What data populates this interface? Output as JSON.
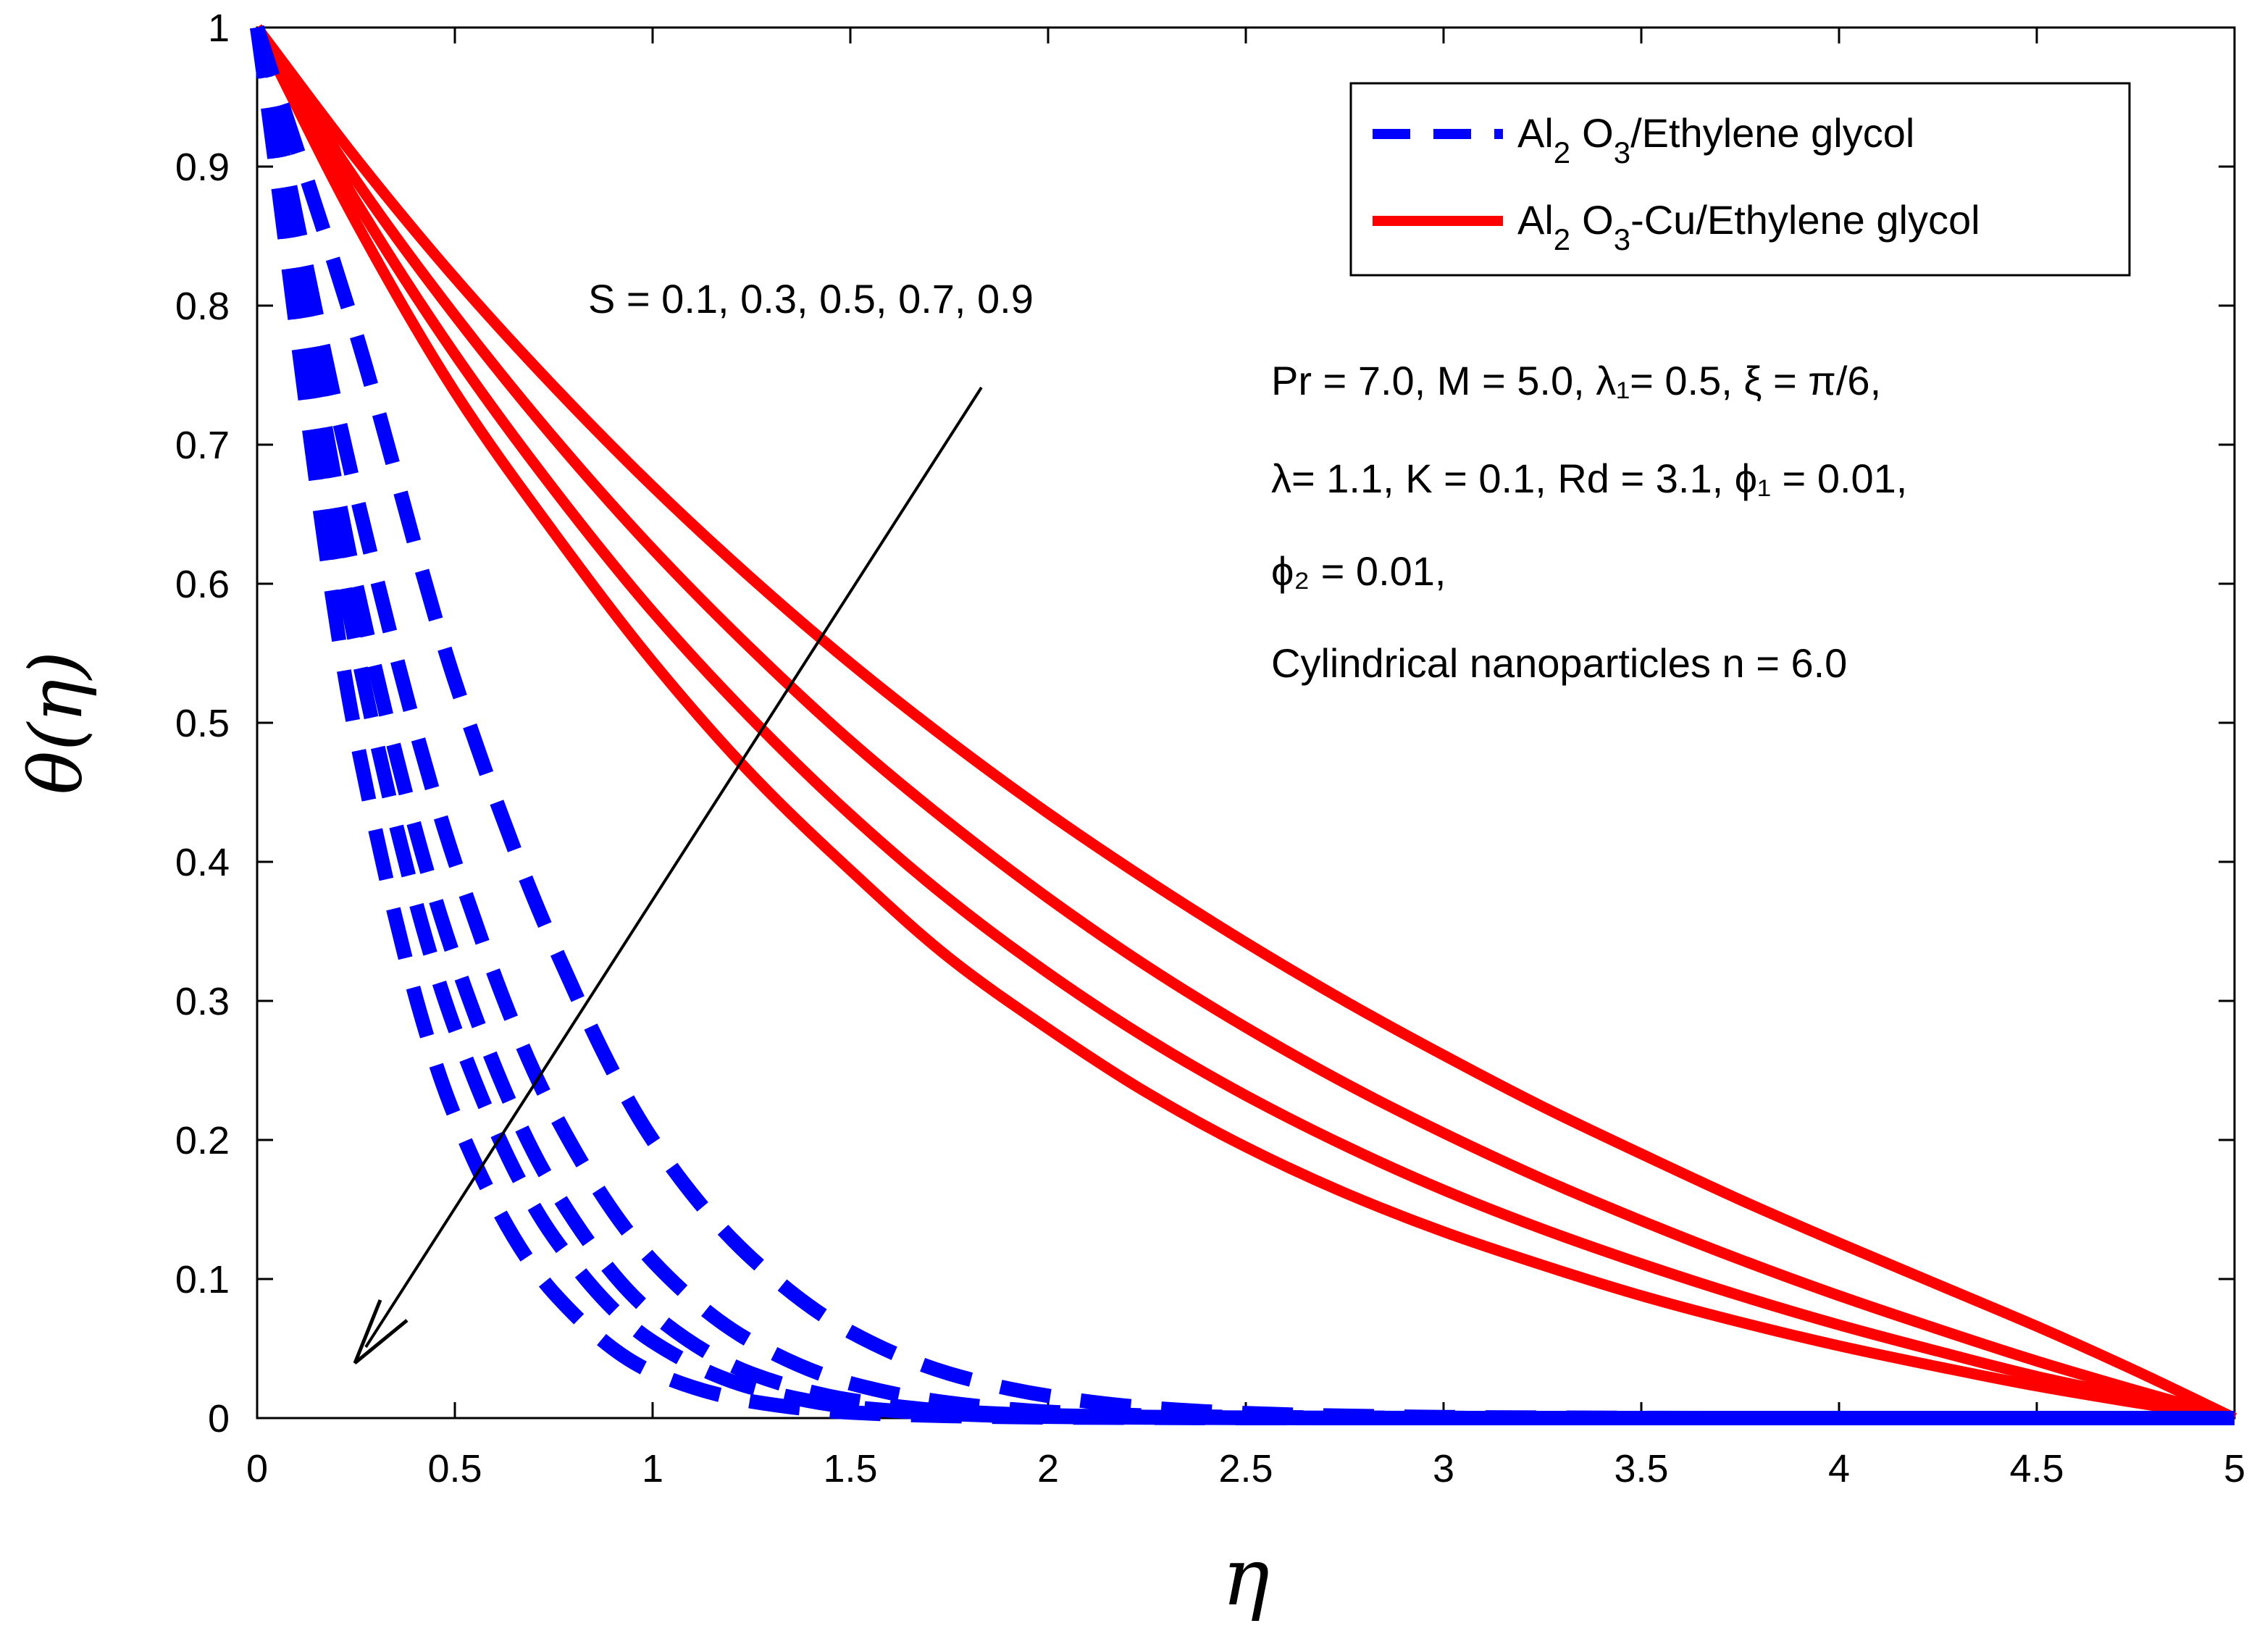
{
  "chart_data": {
    "type": "line",
    "xlabel": "η",
    "ylabel": "θ(η)",
    "xlim": [
      0,
      5
    ],
    "ylim": [
      0,
      1
    ],
    "x_ticks": [
      "0",
      "0.5",
      "1",
      "1.5",
      "2",
      "2.5",
      "3",
      "3.5",
      "4",
      "4.5",
      "5"
    ],
    "y_ticks": [
      "0",
      "0.1",
      "0.2",
      "0.3",
      "0.4",
      "0.5",
      "0.6",
      "0.7",
      "0.8",
      "0.9",
      "1"
    ],
    "x": [
      0,
      0.25,
      0.5,
      0.75,
      1,
      1.25,
      1.5,
      1.75,
      2,
      2.25,
      2.5,
      2.75,
      3,
      3.25,
      3.5,
      3.75,
      4,
      4.25,
      4.5,
      4.75,
      5
    ],
    "legend": {
      "position": "top-right",
      "entries": [
        {
          "sub1": "2",
          "sub2": "3",
          "label_a": "Al",
          "label_b": "O",
          "label_c": "/Ethylene glycol",
          "series_group": "Al2O3/Ethylene glycol"
        },
        {
          "sub1": "2",
          "sub2": "3",
          "label_a": "Al",
          "label_b": "O",
          "label_c": "-Cu/Ethylene glycol",
          "series_group": "Al2O3-Cu/Ethylene glycol"
        }
      ]
    },
    "series": [
      {
        "group": "Al2O3/Ethylene glycol",
        "S": 0.1,
        "style": "dashed",
        "color": "#0000ff",
        "values": [
          1,
          0.49,
          0.217,
          0.09,
          0.033,
          0.012,
          0.004,
          0.0015,
          0.0005,
          0.0002,
          0,
          0,
          0,
          0,
          0,
          0,
          0,
          0,
          0,
          0,
          0
        ]
      },
      {
        "group": "Al2O3/Ethylene glycol",
        "S": 0.3,
        "style": "dashed",
        "color": "#0000ff",
        "values": [
          1,
          0.555,
          0.28,
          0.13,
          0.055,
          0.022,
          0.008,
          0.003,
          0.001,
          0.0004,
          0.0001,
          0,
          0,
          0,
          0,
          0,
          0,
          0,
          0,
          0,
          0
        ]
      },
      {
        "group": "Al2O3/Ethylene glycol",
        "S": 0.5,
        "style": "dashed",
        "color": "#0000ff",
        "values": [
          1,
          0.6,
          0.33,
          0.165,
          0.075,
          0.032,
          0.013,
          0.005,
          0.002,
          0.0008,
          0.0003,
          0.0001,
          0,
          0,
          0,
          0,
          0,
          0,
          0,
          0,
          0
        ]
      },
      {
        "group": "Al2O3/Ethylene glycol",
        "S": 0.7,
        "style": "dashed",
        "color": "#0000ff",
        "values": [
          1,
          0.665,
          0.4,
          0.22,
          0.113,
          0.055,
          0.025,
          0.011,
          0.0045,
          0.0018,
          0.0007,
          0.0003,
          0.0001,
          0,
          0,
          0,
          0,
          0,
          0,
          0,
          0
        ]
      },
      {
        "group": "Al2O3/Ethylene glycol",
        "S": 0.9,
        "style": "dashed",
        "color": "#0000ff",
        "values": [
          1,
          0.78,
          0.53,
          0.34,
          0.2,
          0.115,
          0.062,
          0.032,
          0.016,
          0.0075,
          0.0035,
          0.0016,
          0.0007,
          0.0003,
          0.0001,
          0,
          0,
          0,
          0,
          0,
          0
        ]
      },
      {
        "group": "Al2O3-Cu/Ethylene glycol",
        "S": 0.1,
        "style": "solid",
        "color": "#ff0000",
        "values": [
          1,
          0.86,
          0.738,
          0.637,
          0.544,
          0.463,
          0.394,
          0.331,
          0.28,
          0.234,
          0.195,
          0.162,
          0.134,
          0.11,
          0.088,
          0.069,
          0.052,
          0.037,
          0.023,
          0.011,
          0
        ]
      },
      {
        "group": "Al2O3-Cu/Ethylene glycol",
        "S": 0.3,
        "style": "solid",
        "color": "#ff0000",
        "values": [
          1,
          0.875,
          0.765,
          0.668,
          0.58,
          0.503,
          0.434,
          0.373,
          0.32,
          0.273,
          0.232,
          0.196,
          0.164,
          0.136,
          0.111,
          0.088,
          0.067,
          0.048,
          0.03,
          0.015,
          0
        ]
      },
      {
        "group": "Al2O3-Cu/Ethylene glycol",
        "S": 0.5,
        "style": "solid",
        "color": "#ff0000",
        "values": [
          1,
          0.89,
          0.793,
          0.705,
          0.625,
          0.553,
          0.487,
          0.428,
          0.374,
          0.325,
          0.281,
          0.241,
          0.205,
          0.172,
          0.142,
          0.114,
          0.088,
          0.064,
          0.041,
          0.02,
          0
        ]
      },
      {
        "group": "Al2O3-Cu/Ethylene glycol",
        "S": 0.7,
        "style": "solid",
        "color": "#ff0000",
        "values": [
          1,
          0.906,
          0.82,
          0.742,
          0.67,
          0.604,
          0.543,
          0.487,
          0.435,
          0.387,
          0.342,
          0.3,
          0.261,
          0.224,
          0.19,
          0.157,
          0.126,
          0.096,
          0.066,
          0.034,
          0
        ]
      }
    ],
    "annotations": {
      "arrow_label": "S = 0.1, 0.3, 0.5, 0.7, 0.9",
      "params_line1": "Pr = 7.0, M = 5.0,  λ₁= 0.5, ξ = π/6,",
      "params_line2": "λ= 1.1, K = 0.1, Rd = 3.1,  ϕ₁ = 0.01,",
      "params_line3": "ϕ₂ = 0.01,",
      "params_line4": "Cylindrical nanoparticles n = 6.0"
    }
  },
  "colors": {
    "blue_series": "#0000ff",
    "red_series": "#ff0000"
  }
}
